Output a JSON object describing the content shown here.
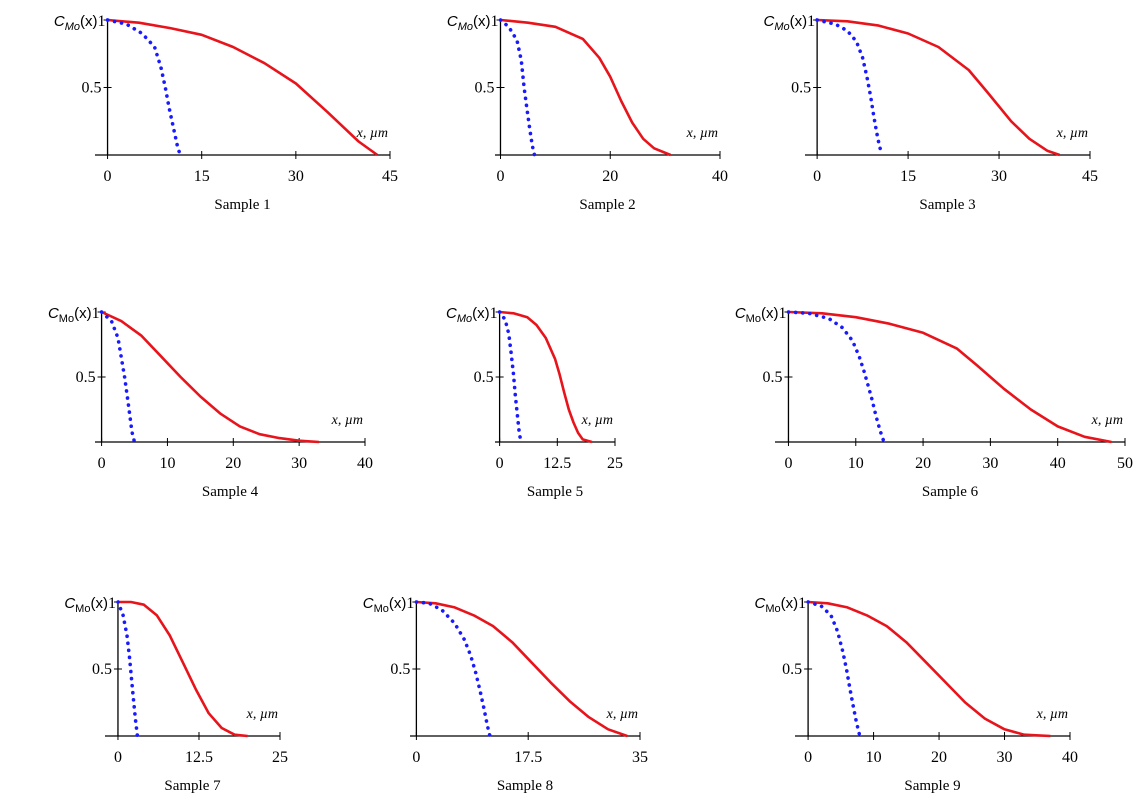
{
  "figure": {
    "description_free": true
  },
  "colors": {
    "measured": "#e8141c",
    "model": "#1a1aff",
    "axis": "#000000"
  },
  "chart_data": [
    {
      "type": "line",
      "caption": "Sample 1",
      "ylabel": "C_Mo(x)",
      "y_sub": "Mo",
      "ylabel_style": "italic",
      "xlabel": "x, µm",
      "xlim": [
        -2,
        45
      ],
      "xticks": [
        "0",
        "15",
        "30",
        "45"
      ],
      "xtick_values": [
        0,
        15,
        30,
        45
      ],
      "ylim": [
        0,
        1
      ],
      "yticks": [
        "0.5",
        "1"
      ],
      "ytick_values": [
        0.5,
        1
      ],
      "series": [
        {
          "style": "solid-red",
          "x": [
            0,
            5,
            10,
            15,
            20,
            25,
            30,
            35,
            40,
            43
          ],
          "y": [
            1,
            0.98,
            0.94,
            0.89,
            0.8,
            0.68,
            0.53,
            0.32,
            0.1,
            0
          ]
        },
        {
          "style": "dotted-blue",
          "x": [
            0,
            3,
            5.5,
            7.5,
            8.5,
            9.2,
            9.8,
            10.5,
            11.2,
            11.6
          ],
          "y": [
            1,
            0.97,
            0.9,
            0.8,
            0.65,
            0.5,
            0.35,
            0.2,
            0.05,
            0
          ]
        }
      ]
    },
    {
      "type": "line",
      "caption": "Sample 2",
      "ylabel": "C_Mo(x)",
      "y_sub": "Mo",
      "ylabel_style": "italic",
      "xlabel": "x, µm",
      "xlim": [
        -1,
        40
      ],
      "xticks": [
        "0",
        "20",
        "40"
      ],
      "xtick_values": [
        0,
        20,
        40
      ],
      "ylim": [
        0,
        1
      ],
      "yticks": [
        "0.5",
        "1"
      ],
      "ytick_values": [
        0.5,
        1
      ],
      "series": [
        {
          "style": "solid-red",
          "x": [
            0,
            5,
            10,
            15,
            18,
            20,
            22,
            24,
            26,
            28,
            31
          ],
          "y": [
            1,
            0.98,
            0.95,
            0.86,
            0.72,
            0.58,
            0.4,
            0.24,
            0.12,
            0.05,
            0
          ]
        },
        {
          "style": "dotted-blue",
          "x": [
            0,
            1.5,
            3,
            3.8,
            4.3,
            4.8,
            5.3,
            5.8,
            6.2
          ],
          "y": [
            1,
            0.95,
            0.85,
            0.7,
            0.5,
            0.35,
            0.2,
            0.07,
            0
          ]
        }
      ]
    },
    {
      "type": "line",
      "caption": "Sample 3",
      "ylabel": "C_Mo(x)",
      "y_sub": "Mo",
      "ylabel_style": "italic",
      "xlabel": "x, µm",
      "xlim": [
        -2,
        45
      ],
      "xticks": [
        "0",
        "15",
        "30",
        "45"
      ],
      "xtick_values": [
        0,
        15,
        30,
        45
      ],
      "ylim": [
        0,
        1
      ],
      "yticks": [
        "0.5",
        "1"
      ],
      "ytick_values": [
        0.5,
        1
      ],
      "series": [
        {
          "style": "solid-red",
          "x": [
            0,
            5,
            10,
            15,
            20,
            25,
            28,
            32,
            35,
            38,
            40
          ],
          "y": [
            1,
            0.99,
            0.96,
            0.9,
            0.8,
            0.63,
            0.47,
            0.25,
            0.12,
            0.03,
            0
          ]
        },
        {
          "style": "dotted-blue",
          "x": [
            0,
            3,
            5,
            6.5,
            7.5,
            8.2,
            8.8,
            9.3,
            9.8,
            10.3,
            10.8
          ],
          "y": [
            1,
            0.97,
            0.92,
            0.84,
            0.72,
            0.58,
            0.44,
            0.3,
            0.17,
            0.06,
            0
          ]
        }
      ]
    },
    {
      "type": "line",
      "caption": "Sample 4",
      "ylabel": "C_Mo(x)",
      "y_sub": "Mo",
      "ylabel_style": "upright",
      "xlabel": "x, µm",
      "xlim": [
        -1,
        40
      ],
      "xticks": [
        "0",
        "10",
        "20",
        "30",
        "40"
      ],
      "xtick_values": [
        0,
        10,
        20,
        30,
        40
      ],
      "ylim": [
        0,
        1
      ],
      "yticks": [
        "0.5",
        "1"
      ],
      "ytick_values": [
        0.5,
        1
      ],
      "series": [
        {
          "style": "solid-red",
          "x": [
            0,
            3,
            6,
            9,
            12,
            15,
            18,
            21,
            24,
            27,
            30,
            33
          ],
          "y": [
            1,
            0.93,
            0.82,
            0.66,
            0.5,
            0.35,
            0.22,
            0.12,
            0.06,
            0.03,
            0.01,
            0
          ]
        },
        {
          "style": "dotted-blue",
          "x": [
            0,
            1.5,
            2.5,
            3,
            3.5,
            3.9,
            4.3,
            4.6,
            5
          ],
          "y": [
            1,
            0.93,
            0.8,
            0.65,
            0.5,
            0.35,
            0.2,
            0.08,
            0
          ]
        }
      ]
    },
    {
      "type": "line",
      "caption": "Sample 5",
      "ylabel": "C_Mo(x)",
      "y_sub": "Mo",
      "ylabel_style": "italic",
      "xlabel": "x, µm",
      "xlim": [
        -1,
        25
      ],
      "xticks": [
        "0",
        "12.5",
        "25"
      ],
      "xtick_values": [
        0,
        12.5,
        25
      ],
      "ylim": [
        0,
        1
      ],
      "yticks": [
        "0.5",
        "1"
      ],
      "ytick_values": [
        0.5,
        1
      ],
      "series": [
        {
          "style": "solid-red",
          "x": [
            0,
            3,
            6,
            8,
            10,
            12,
            13,
            14,
            15,
            16,
            17,
            18,
            20
          ],
          "y": [
            1,
            0.99,
            0.96,
            0.9,
            0.8,
            0.64,
            0.52,
            0.38,
            0.25,
            0.15,
            0.07,
            0.02,
            0
          ]
        },
        {
          "style": "dotted-blue",
          "x": [
            0,
            1.2,
            2,
            2.5,
            3,
            3.4,
            3.8,
            4.2,
            4.6
          ],
          "y": [
            1,
            0.94,
            0.83,
            0.68,
            0.52,
            0.36,
            0.22,
            0.09,
            0
          ]
        }
      ]
    },
    {
      "type": "line",
      "caption": "Sample 6",
      "ylabel": "C_Mo(x)",
      "y_sub": "Mo",
      "ylabel_style": "upright",
      "xlabel": "x, µm",
      "xlim": [
        -2,
        50
      ],
      "xticks": [
        "0",
        "10",
        "20",
        "30",
        "40",
        "50"
      ],
      "xtick_values": [
        0,
        10,
        20,
        30,
        40,
        50
      ],
      "ylim": [
        0,
        1
      ],
      "yticks": [
        "0.5",
        "1"
      ],
      "ytick_values": [
        0.5,
        1
      ],
      "series": [
        {
          "style": "solid-red",
          "x": [
            0,
            5,
            10,
            15,
            20,
            25,
            28,
            32,
            36,
            40,
            44,
            48
          ],
          "y": [
            1,
            0.99,
            0.96,
            0.91,
            0.84,
            0.72,
            0.59,
            0.41,
            0.25,
            0.12,
            0.04,
            0
          ]
        },
        {
          "style": "dotted-blue",
          "x": [
            0,
            3,
            6,
            8,
            9.5,
            10.5,
            11.2,
            11.8,
            12.4,
            13,
            13.6,
            14.2
          ],
          "y": [
            1,
            0.99,
            0.95,
            0.88,
            0.78,
            0.66,
            0.55,
            0.44,
            0.33,
            0.2,
            0.09,
            0
          ]
        }
      ]
    },
    {
      "type": "line",
      "caption": "Sample 7",
      "ylabel": "C_Mo(x)",
      "y_sub": "Mo",
      "ylabel_style": "upright",
      "xlabel": "x, µm",
      "xlim": [
        -2,
        25
      ],
      "xticks": [
        "0",
        "12.5",
        "25"
      ],
      "xtick_values": [
        0,
        12.5,
        25
      ],
      "ylim": [
        0,
        1
      ],
      "yticks": [
        "0.5",
        "1"
      ],
      "ytick_values": [
        0.5,
        1
      ],
      "series": [
        {
          "style": "solid-red",
          "x": [
            0,
            2,
            4,
            6,
            8,
            10,
            12,
            14,
            16,
            18,
            20
          ],
          "y": [
            1,
            1,
            0.98,
            0.9,
            0.75,
            0.55,
            0.35,
            0.17,
            0.06,
            0.01,
            0
          ]
        },
        {
          "style": "dotted-blue",
          "x": [
            0,
            0.8,
            1.4,
            1.8,
            2.1,
            2.4,
            2.7,
            3
          ],
          "y": [
            1,
            0.9,
            0.75,
            0.58,
            0.42,
            0.27,
            0.12,
            0
          ]
        }
      ]
    },
    {
      "type": "line",
      "caption": "Sample 8",
      "ylabel": "C_Mo(x)",
      "y_sub": "Mo",
      "ylabel_style": "upright",
      "xlabel": "x, µm",
      "xlim": [
        -1,
        35
      ],
      "xticks": [
        "0",
        "17.5",
        "35"
      ],
      "xtick_values": [
        0,
        17.5,
        35
      ],
      "ylim": [
        0,
        1
      ],
      "yticks": [
        "0.5",
        "1"
      ],
      "ytick_values": [
        0.5,
        1
      ],
      "series": [
        {
          "style": "solid-red",
          "x": [
            0,
            3,
            6,
            9,
            12,
            15,
            18,
            21,
            24,
            27,
            30,
            33
          ],
          "y": [
            1,
            0.99,
            0.96,
            0.9,
            0.82,
            0.7,
            0.55,
            0.4,
            0.26,
            0.14,
            0.05,
            0
          ]
        },
        {
          "style": "dotted-blue",
          "x": [
            0,
            2,
            4,
            6,
            7.5,
            8.5,
            9.3,
            10,
            10.6,
            11.1,
            11.5
          ],
          "y": [
            1,
            0.99,
            0.94,
            0.84,
            0.72,
            0.6,
            0.47,
            0.33,
            0.2,
            0.08,
            0
          ]
        }
      ]
    },
    {
      "type": "line",
      "caption": "Sample 9",
      "ylabel": "C_Mo(x)",
      "y_sub": "Mo",
      "ylabel_style": "upright",
      "xlabel": "x, µm",
      "xlim": [
        -2,
        40
      ],
      "xticks": [
        "0",
        "10",
        "20",
        "30",
        "40"
      ],
      "xtick_values": [
        0,
        10,
        20,
        30,
        40
      ],
      "ylim": [
        0,
        1
      ],
      "yticks": [
        "0.5",
        "1"
      ],
      "ytick_values": [
        0.5,
        1
      ],
      "series": [
        {
          "style": "solid-red",
          "x": [
            0,
            3,
            6,
            9,
            12,
            15,
            18,
            21,
            24,
            27,
            30,
            33,
            37
          ],
          "y": [
            1,
            0.99,
            0.96,
            0.9,
            0.82,
            0.7,
            0.55,
            0.4,
            0.25,
            0.13,
            0.05,
            0.01,
            0
          ]
        },
        {
          "style": "dotted-blue",
          "x": [
            0,
            2,
            3.5,
            4.5,
            5.3,
            5.9,
            6.4,
            6.9,
            7.4,
            7.9
          ],
          "y": [
            1,
            0.97,
            0.9,
            0.78,
            0.63,
            0.49,
            0.35,
            0.22,
            0.1,
            0
          ]
        }
      ]
    }
  ]
}
